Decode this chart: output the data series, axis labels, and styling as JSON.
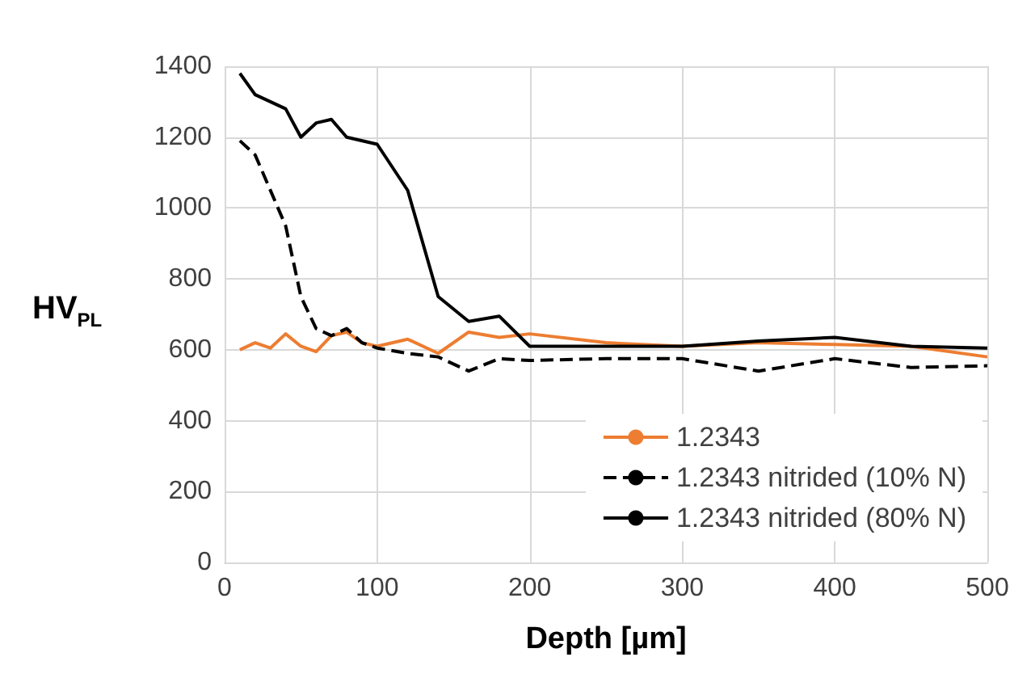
{
  "chart_data": {
    "type": "line",
    "xlabel": "Depth [µm]",
    "ylabel": "HV$_{PL}$",
    "xlim": [
      0,
      500
    ],
    "xticks": [
      0,
      100,
      200,
      300,
      400,
      500
    ],
    "ylim": [
      0,
      1400
    ],
    "yticks": [
      0,
      200,
      400,
      600,
      800,
      1000,
      1200,
      1400
    ],
    "grid": true,
    "legend": "bottom right",
    "marker": "none",
    "series": [
      {
        "name": "1.2343",
        "color": "#ed7d31",
        "line_style": "solid",
        "x": [
          10,
          20,
          30,
          40,
          50,
          60,
          70,
          80,
          90,
          100,
          120,
          140,
          160,
          180,
          200,
          250,
          300,
          350,
          400,
          450,
          500
        ],
        "values": [
          600,
          620,
          605,
          645,
          610,
          595,
          640,
          650,
          620,
          610,
          630,
          590,
          650,
          635,
          645,
          620,
          610,
          620,
          615,
          610,
          580
        ]
      },
      {
        "name": "1.2343 nitrided (10% N)",
        "color": "#000000",
        "line_style": "dashed",
        "x": [
          10,
          20,
          40,
          50,
          60,
          70,
          80,
          90,
          100,
          120,
          140,
          160,
          180,
          200,
          250,
          300,
          350,
          400,
          450,
          500
        ],
        "values": [
          1190,
          1150,
          950,
          750,
          660,
          640,
          660,
          620,
          605,
          590,
          580,
          540,
          575,
          570,
          575,
          575,
          540,
          575,
          550,
          555
        ]
      },
      {
        "name": "1.2343 nitrided (80% N)",
        "color": "#000000",
        "line_style": "solid",
        "x": [
          10,
          20,
          40,
          50,
          60,
          70,
          80,
          100,
          120,
          140,
          160,
          180,
          200,
          300,
          350,
          400,
          450,
          500
        ],
        "values": [
          1380,
          1320,
          1280,
          1200,
          1240,
          1250,
          1200,
          1180,
          1050,
          750,
          680,
          695,
          610,
          610,
          625,
          635,
          610,
          605
        ]
      }
    ]
  }
}
